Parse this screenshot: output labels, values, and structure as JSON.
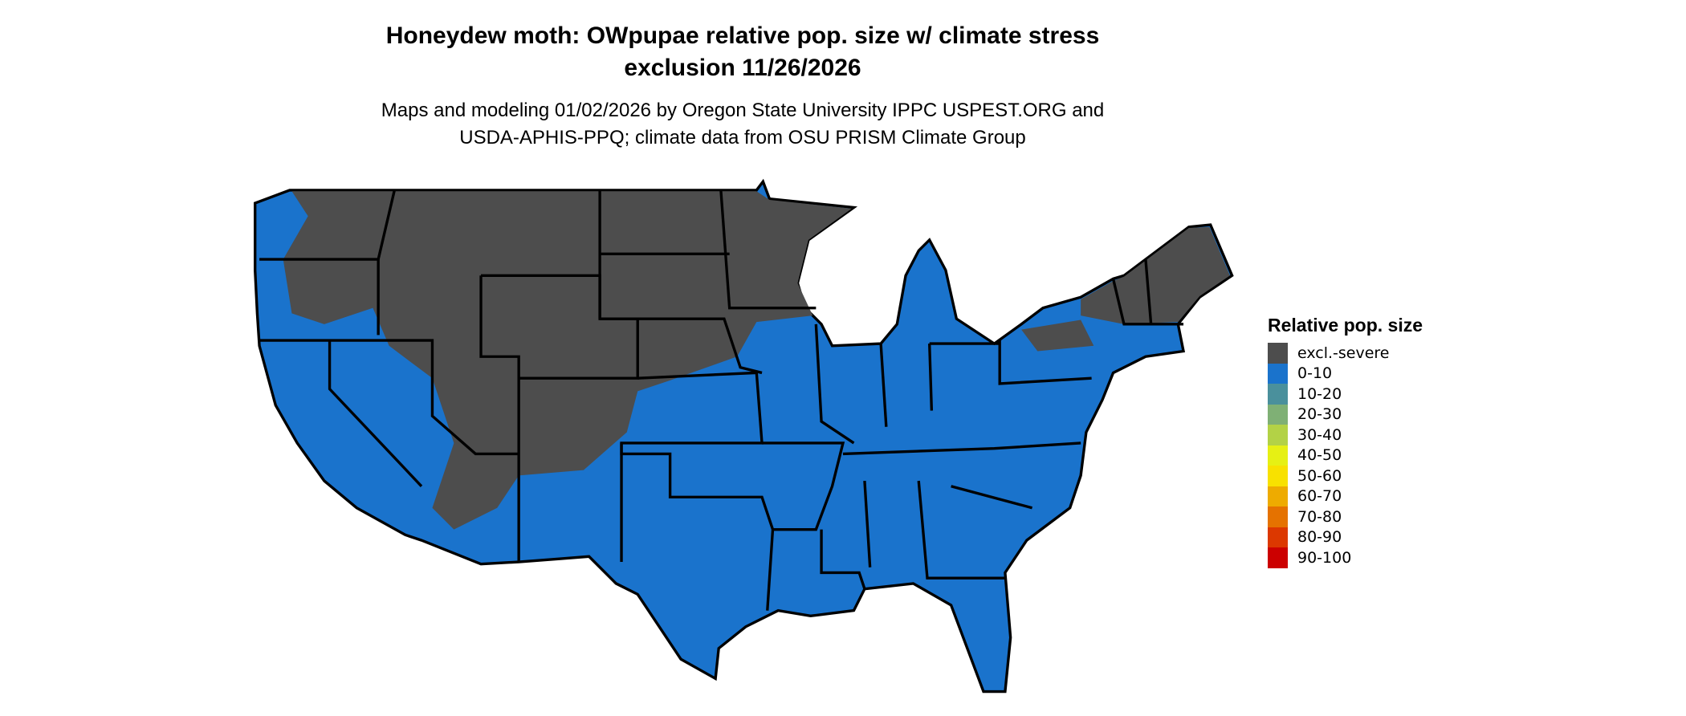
{
  "title_line1": "Honeydew moth: OWpupae relative pop. size w/ climate stress",
  "title_line2": "exclusion 11/26/2026",
  "subtitle_line1": "Maps and modeling 01/02/2026 by Oregon State University IPPC USPEST.ORG and",
  "subtitle_line2": "USDA-APHIS-PPQ; climate data from OSU PRISM Climate Group",
  "legend": {
    "title": "Relative pop. size",
    "items": [
      {
        "label": "excl.-severe",
        "color": "#4d4d4d"
      },
      {
        "label": "0-10",
        "color": "#1a73cc"
      },
      {
        "label": "10-20",
        "color": "#4a909c"
      },
      {
        "label": "20-30",
        "color": "#7fb075"
      },
      {
        "label": "30-40",
        "color": "#b3d246"
      },
      {
        "label": "40-50",
        "color": "#e6f014"
      },
      {
        "label": "50-60",
        "color": "#f8e100"
      },
      {
        "label": "60-70",
        "color": "#eeab00"
      },
      {
        "label": "70-80",
        "color": "#e57200"
      },
      {
        "label": "80-90",
        "color": "#dc3800"
      },
      {
        "label": "90-100",
        "color": "#cc0000"
      }
    ]
  },
  "map_colors": {
    "excluded": "#4d4d4d",
    "low": "#1a73cc",
    "border": "#000000"
  }
}
